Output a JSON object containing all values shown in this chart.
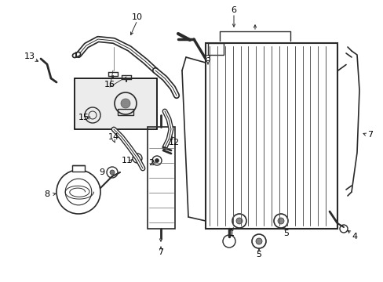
{
  "bg_color": "#ffffff",
  "line_color": "#2a2a2a",
  "fig_w": 4.89,
  "fig_h": 3.6,
  "dpi": 100
}
